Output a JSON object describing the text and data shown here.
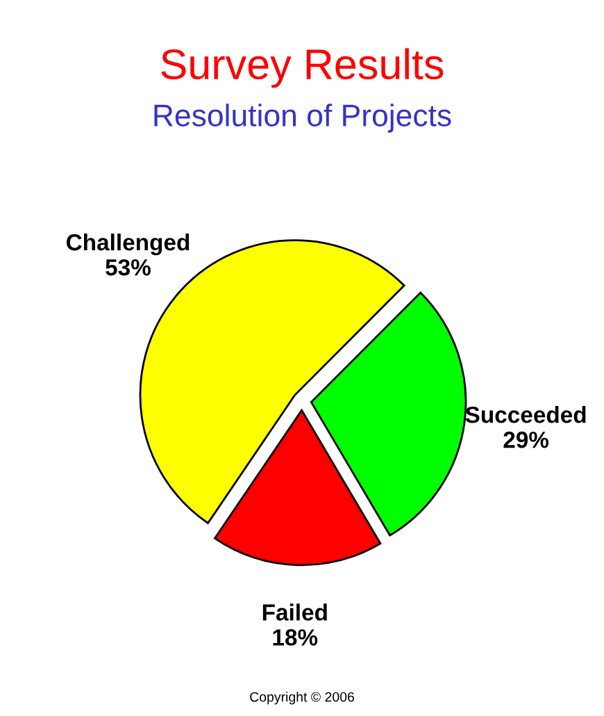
{
  "chart_data": {
    "type": "pie",
    "title": "Survey Results",
    "subtitle": "Resolution of Projects",
    "categories": [
      "Challenged",
      "Failed",
      "Succeeded"
    ],
    "values": [
      53,
      18,
      29
    ],
    "value_labels": [
      "53%",
      "18%",
      "29%"
    ],
    "colors": [
      "#ffff00",
      "#ff0000",
      "#00ff00"
    ],
    "annotations": [
      "Copyright © 2006"
    ]
  }
}
